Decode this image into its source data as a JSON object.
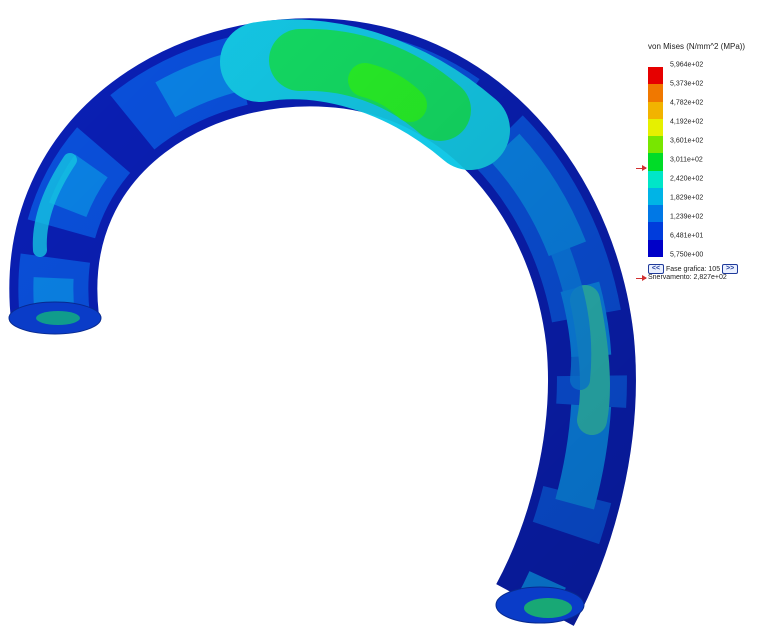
{
  "legend": {
    "title": "von Mises (N/mm^2 (MPa))",
    "colors": [
      "#e60000",
      "#f07800",
      "#f2b300",
      "#e6f000",
      "#78e600",
      "#00dc28",
      "#00e6c8",
      "#00b4e6",
      "#0078e6",
      "#003cdc",
      "#0000c8"
    ],
    "ticks": [
      "5,964e+02",
      "5,373e+02",
      "4,782e+02",
      "4,192e+02",
      "3,601e+02",
      "3,011e+02",
      "2,420e+02",
      "1,829e+02",
      "1,239e+02",
      "6,481e+01",
      "5,750e+00"
    ],
    "yield_value": 282.7
  },
  "plot_step": {
    "prev_icon": "double-chevron-left-icon",
    "label": "Fase grafica: 105",
    "next_icon": "double-chevron-right-icon"
  },
  "yield": {
    "label": "Snervamento: 2,827e+02",
    "arrow_color": "#d23030"
  },
  "model": {
    "colors": {
      "dark_blue": "#0a1fb4",
      "blue": "#0a50dc",
      "mid_blue": "#0a82e6",
      "cyan": "#14c8e6",
      "teal": "#2ab4b4",
      "green": "#14dc64",
      "bright_green": "#28f028"
    }
  }
}
